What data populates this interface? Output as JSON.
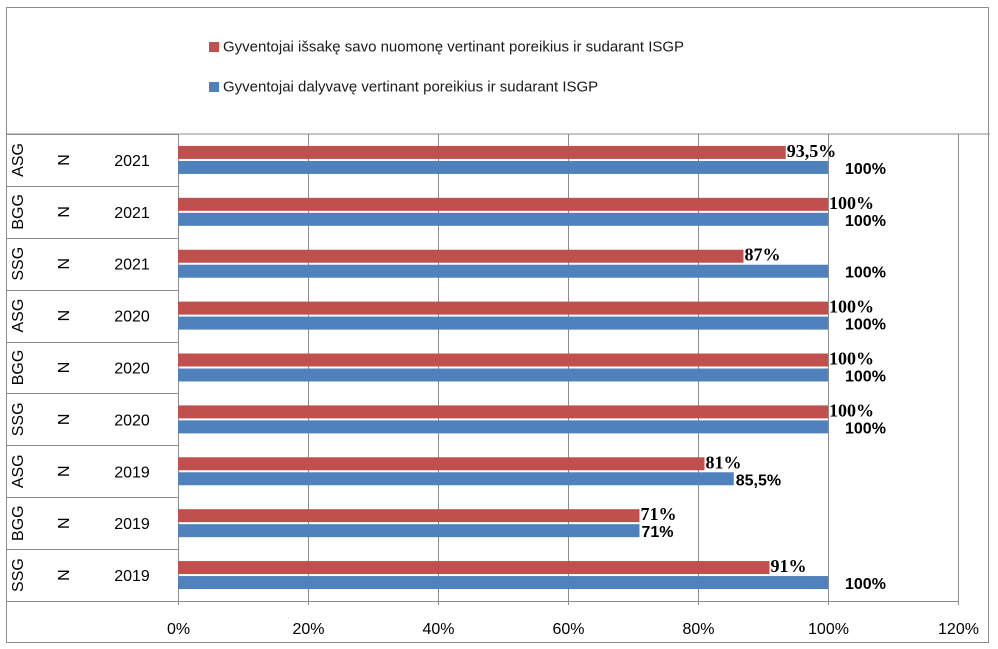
{
  "chart_data": {
    "type": "bar",
    "orientation": "horizontal",
    "categories": [
      {
        "level1": "ASG",
        "level2": "N",
        "level3": "2021"
      },
      {
        "level1": "BGG",
        "level2": "N",
        "level3": "2021"
      },
      {
        "level1": "SSG",
        "level2": "N",
        "level3": "2021"
      },
      {
        "level1": "ASG",
        "level2": "N",
        "level3": "2020"
      },
      {
        "level1": "BGG",
        "level2": "N",
        "level3": "2020"
      },
      {
        "level1": "SSG",
        "level2": "N",
        "level3": "2020"
      },
      {
        "level1": "ASG",
        "level2": "N",
        "level3": "2019"
      },
      {
        "level1": "BGG",
        "level2": "N",
        "level3": "2019"
      },
      {
        "level1": "SSG",
        "level2": "N",
        "level3": "2019"
      }
    ],
    "series": [
      {
        "name": "Gyventojai išsakę savo nuomonę vertinant poreikius ir sudarant ISGP",
        "color": "#c0504d",
        "values": [
          93.5,
          100,
          87,
          100,
          100,
          100,
          81,
          71,
          91
        ],
        "labels": [
          "93,5%",
          "100%",
          "87%",
          "100%",
          "100%",
          "100%",
          "81%",
          "71%",
          "91%"
        ]
      },
      {
        "name": "Gyventojai dalyvavę vertinant poreikius ir sudarant ISGP",
        "color": "#4f81bd",
        "values": [
          100,
          100,
          100,
          100,
          100,
          100,
          85.5,
          71,
          100
        ],
        "labels": [
          "100%",
          "100%",
          "100%",
          "100%",
          "100%",
          "100%",
          "85,5%",
          "71%",
          "100%"
        ]
      }
    ],
    "xlim": [
      0,
      120
    ],
    "xticks": [
      0,
      20,
      40,
      60,
      80,
      100,
      120
    ],
    "xtick_labels": [
      "0%",
      "20%",
      "40%",
      "60%",
      "80%",
      "100%",
      "120%"
    ],
    "grid": true,
    "legend_position": "top"
  }
}
